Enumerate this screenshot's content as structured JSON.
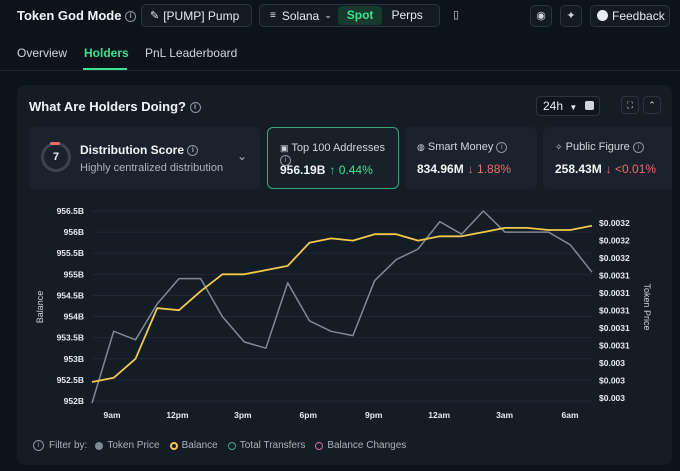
{
  "header": {
    "title": "Token God Mode",
    "token_label": "[PUMP] Pump",
    "chain_label": "Solana",
    "spot_label": "Spot",
    "perps_label": "Perps",
    "feedback_label": "Feedback"
  },
  "tabs": [
    {
      "label": "Overview"
    },
    {
      "label": "Holders"
    },
    {
      "label": "PnL Leaderboard"
    }
  ],
  "panel": {
    "title": "What Are Holders Doing?",
    "range_label": "24h"
  },
  "cards": {
    "distribution": {
      "score": "7",
      "label": "Distribution Score",
      "sub": "Highly centralized distribution"
    },
    "top100": {
      "label": "Top 100 Addresses",
      "value": "956.19B",
      "change": "↑ 0.44%"
    },
    "smart": {
      "label": "Smart Money",
      "value": "834.96M",
      "change": "↓ 1.88%"
    },
    "public": {
      "label": "Public Figure",
      "value": "258.43M",
      "change": "↓ <0.01%"
    }
  },
  "chart_data": {
    "type": "line",
    "x_ticks": [
      "9am",
      "12pm",
      "3pm",
      "6pm",
      "9pm",
      "12am",
      "3am",
      "6am"
    ],
    "y_left_ticks": [
      "956.5B",
      "956B",
      "955.5B",
      "955B",
      "954.5B",
      "954B",
      "953.5B",
      "953B",
      "952.5B",
      "952B"
    ],
    "y_right_ticks": [
      "$0.0032",
      "$0.0032",
      "$0.0032",
      "$0.0031",
      "$0.0031",
      "$0.0031",
      "$0.0031",
      "$0.0031",
      "$0.003",
      "$0.003",
      "$0.003"
    ],
    "ylabel_left": "Balance",
    "ylabel_right": "Token Price",
    "ylim_left": [
      952,
      956.5
    ],
    "series": [
      {
        "name": "Balance",
        "color": "#f2c94c",
        "axis": "left",
        "x": [
          0,
          1,
          2,
          3,
          4,
          5,
          6,
          7,
          8,
          9,
          10,
          11,
          12,
          13,
          14,
          15,
          16,
          17,
          18,
          19,
          20,
          21,
          22,
          23
        ],
        "values": [
          952.45,
          952.55,
          953.0,
          954.2,
          954.15,
          954.6,
          955.0,
          955.0,
          955.1,
          955.2,
          955.75,
          955.85,
          955.8,
          955.95,
          955.95,
          955.8,
          955.9,
          955.9,
          956.0,
          956.1,
          956.1,
          956.05,
          956.05,
          956.15
        ]
      },
      {
        "name": "Token Price",
        "color": "#7e8b96",
        "axis": "left",
        "x": [
          0,
          1,
          2,
          3,
          4,
          5,
          6,
          7,
          8,
          9,
          10,
          11,
          12,
          13,
          14,
          15,
          16,
          17,
          18,
          19,
          20,
          21,
          22,
          23
        ],
        "values": [
          951.95,
          953.65,
          953.45,
          954.3,
          954.9,
          954.9,
          954.0,
          953.4,
          953.25,
          954.8,
          953.9,
          953.65,
          953.55,
          954.85,
          955.35,
          955.6,
          956.25,
          955.95,
          956.5,
          956.0,
          956.0,
          956.0,
          955.7,
          955.05
        ]
      }
    ],
    "legend": [
      {
        "label": "Token Price",
        "color": "#7e8b96"
      },
      {
        "label": "Balance",
        "color": "#f2c94c"
      },
      {
        "label": "Total Transfers",
        "color": "#3fa67c"
      },
      {
        "label": "Balance Changes",
        "color": "#d96aa8"
      }
    ],
    "filter_label": "Filter by:"
  }
}
